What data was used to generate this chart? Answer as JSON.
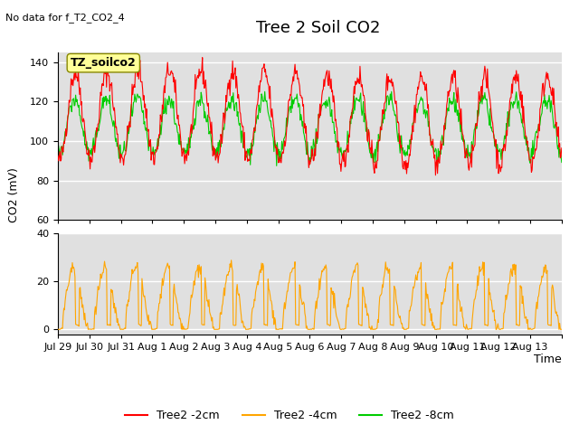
{
  "title": "Tree 2 Soil CO2",
  "no_data_text": "No data for f_T2_CO2_4",
  "ylabel": "CO2 (mV)",
  "xlabel": "Time",
  "upper_ylim": [
    60,
    145
  ],
  "lower_ylim": [
    -2,
    40
  ],
  "upper_yticks": [
    60,
    80,
    100,
    120,
    140
  ],
  "lower_yticks": [
    0,
    20,
    40
  ],
  "x_tick_positions": [
    0,
    1,
    2,
    3,
    4,
    5,
    6,
    7,
    8,
    9,
    10,
    11,
    12,
    13,
    14,
    15,
    16
  ],
  "x_tick_labels": [
    "Jul 29",
    "Jul 30",
    "Jul 31",
    "Aug 1",
    "Aug 2",
    "Aug 3",
    "Aug 4",
    "Aug 5",
    "Aug 6",
    "Aug 7",
    "Aug 8",
    "Aug 9",
    "Aug 10",
    "Aug 11",
    "Aug 12",
    "Aug 13",
    ""
  ],
  "legend_labels": [
    "Tree2 -2cm",
    "Tree2 -4cm",
    "Tree2 -8cm"
  ],
  "legend_colors": [
    "#ff0000",
    "#ffa500",
    "#00cc00"
  ],
  "line_color_red": "#ff0000",
  "line_color_green": "#00cc00",
  "line_color_orange": "#ffa500",
  "background_color": "#ffffff",
  "plot_bg_color": "#e0e0e0",
  "grid_color": "#ffffff",
  "annotation_box_facecolor": "#ffff99",
  "annotation_box_edgecolor": "#888800",
  "annotation_text": "TZ_soilco2",
  "title_fontsize": 13,
  "label_fontsize": 9,
  "tick_fontsize": 8,
  "no_data_fontsize": 8,
  "annotation_fontsize": 9
}
